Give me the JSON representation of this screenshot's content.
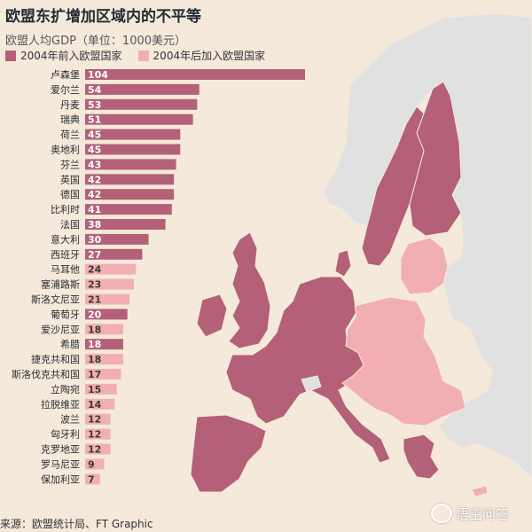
{
  "title": "欧盟东扩增加区域内的不平等",
  "subtitle": "欧盟人均GDP（单位：1000美元）",
  "source": "来源：欧盟统计局、FT Graphic",
  "watermark": "悟空问答",
  "colors": {
    "background": "#f4e9db",
    "pre2004": "#b36078",
    "post2004": "#f1aeb3",
    "non_eu": "#e1e1e1",
    "sea": "#f4e9db"
  },
  "chart_data": {
    "type": "bar",
    "orientation": "horizontal",
    "title": "欧盟东扩增加区域内的不平等",
    "subtitle": "欧盟人均GDP（单位：1000美元）",
    "legend": {
      "placement": "top-left",
      "entries": [
        "2004年前入欧盟国家",
        "2004年后加入欧盟国家"
      ]
    },
    "grid": false,
    "categories": [
      "卢森堡",
      "爱尔兰",
      "丹麦",
      "瑞典",
      "荷兰",
      "奥地利",
      "芬兰",
      "英国",
      "德国",
      "比利时",
      "法国",
      "意大利",
      "西班牙",
      "马耳他",
      "塞浦路斯",
      "斯洛文尼亚",
      "葡萄牙",
      "爱沙尼亚",
      "希腊",
      "捷克共和国",
      "斯洛伐克共和国",
      "立陶宛",
      "拉脱维亚",
      "波兰",
      "匈牙利",
      "克罗地亚",
      "罗马尼亚",
      "保加利亚"
    ],
    "values": [
      104,
      54,
      53,
      51,
      45,
      45,
      43,
      42,
      42,
      41,
      38,
      30,
      27,
      24,
      23,
      21,
      20,
      18,
      18,
      18,
      17,
      15,
      14,
      12,
      12,
      12,
      9,
      7
    ],
    "groups": [
      "pre",
      "pre",
      "pre",
      "pre",
      "pre",
      "pre",
      "pre",
      "pre",
      "pre",
      "pre",
      "pre",
      "pre",
      "pre",
      "post",
      "post",
      "post",
      "pre",
      "post",
      "pre",
      "post",
      "post",
      "post",
      "post",
      "post",
      "post",
      "post",
      "post",
      "post"
    ],
    "xlim": [
      0,
      104
    ]
  }
}
